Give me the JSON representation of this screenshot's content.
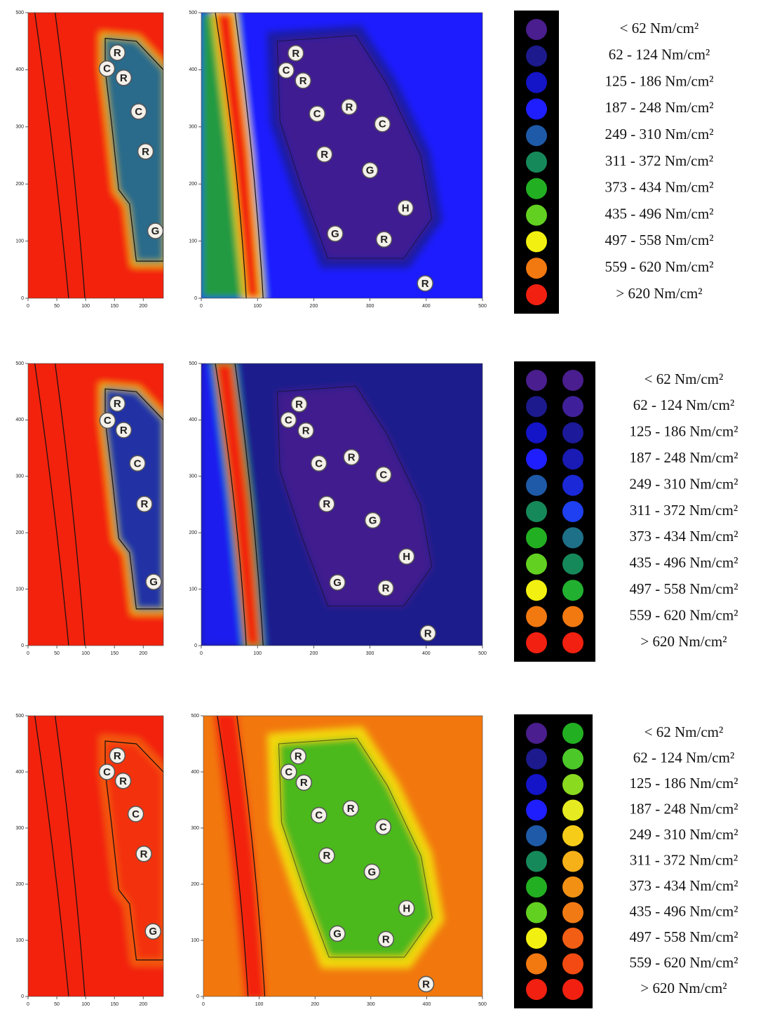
{
  "panels": [
    {
      "small_map": {
        "xlim": [
          0,
          235
        ],
        "ylim": [
          0,
          500
        ],
        "xticks": [
          0,
          50,
          100,
          150,
          200
        ],
        "yticks": [
          0,
          100,
          200,
          300,
          400,
          500
        ],
        "markers": [
          {
            "label": "R",
            "x": 155,
            "y": 430
          },
          {
            "label": "C",
            "x": 137,
            "y": 402
          },
          {
            "label": "R",
            "x": 166,
            "y": 386
          },
          {
            "label": "C",
            "x": 192,
            "y": 327
          },
          {
            "label": "R",
            "x": 204,
            "y": 257
          },
          {
            "label": "G",
            "x": 221,
            "y": 118
          }
        ]
      },
      "large_map": {
        "xlim": [
          0,
          500
        ],
        "ylim": [
          0,
          500
        ],
        "xticks": [
          0,
          100,
          200,
          300,
          400,
          500
        ],
        "yticks": [
          0,
          100,
          200,
          300,
          400,
          500
        ],
        "markers": [
          {
            "label": "R",
            "x": 168,
            "y": 429
          },
          {
            "label": "C",
            "x": 151,
            "y": 399
          },
          {
            "label": "R",
            "x": 181,
            "y": 381
          },
          {
            "label": "C",
            "x": 206,
            "y": 323
          },
          {
            "label": "R",
            "x": 263,
            "y": 335
          },
          {
            "label": "C",
            "x": 322,
            "y": 305
          },
          {
            "label": "R",
            "x": 219,
            "y": 252
          },
          {
            "label": "G",
            "x": 300,
            "y": 224
          },
          {
            "label": "H",
            "x": 363,
            "y": 158
          },
          {
            "label": "G",
            "x": 238,
            "y": 113
          },
          {
            "label": "R",
            "x": 325,
            "y": 103
          },
          {
            "label": "R",
            "x": 398,
            "y": 26
          }
        ]
      },
      "legend": {
        "columns": [
          [
            "#4a1e8e",
            "#1c1a8c",
            "#1414c8",
            "#1e1eff",
            "#1e5aa8",
            "#16895a",
            "#22b022",
            "#62d020",
            "#f2f010",
            "#f27810",
            "#f22010"
          ]
        ],
        "labels": [
          "< 62 Nm/cm²",
          "62 - 124 Nm/cm²",
          "125 - 186 Nm/cm²",
          "187 - 248 Nm/cm²",
          "249 - 310 Nm/cm²",
          "311 - 372 Nm/cm²",
          "373 - 434 Nm/cm²",
          "435 - 496 Nm/cm²",
          "497 - 558 Nm/cm²",
          "559 - 620 Nm/cm²",
          "> 620 Nm/cm²"
        ]
      }
    },
    {
      "small_map": {
        "xlim": [
          0,
          235
        ],
        "ylim": [
          0,
          500
        ],
        "xticks": [
          0,
          50,
          100,
          150,
          200
        ],
        "yticks": [
          0,
          100,
          200,
          300,
          400,
          500
        ],
        "markers": [
          {
            "label": "R",
            "x": 155,
            "y": 429
          },
          {
            "label": "C",
            "x": 138,
            "y": 399
          },
          {
            "label": "R",
            "x": 166,
            "y": 382
          },
          {
            "label": "C",
            "x": 190,
            "y": 323
          },
          {
            "label": "R",
            "x": 202,
            "y": 251
          },
          {
            "label": "G",
            "x": 218,
            "y": 113
          }
        ]
      },
      "large_map": {
        "xlim": [
          0,
          500
        ],
        "ylim": [
          0,
          500
        ],
        "xticks": [
          0,
          100,
          200,
          300,
          400,
          500
        ],
        "yticks": [
          0,
          100,
          200,
          300,
          400,
          500
        ],
        "markers": [
          {
            "label": "R",
            "x": 174,
            "y": 428
          },
          {
            "label": "C",
            "x": 155,
            "y": 400
          },
          {
            "label": "R",
            "x": 186,
            "y": 381
          },
          {
            "label": "C",
            "x": 209,
            "y": 323
          },
          {
            "label": "R",
            "x": 267,
            "y": 334
          },
          {
            "label": "C",
            "x": 324,
            "y": 303
          },
          {
            "label": "R",
            "x": 223,
            "y": 251
          },
          {
            "label": "G",
            "x": 305,
            "y": 222
          },
          {
            "label": "H",
            "x": 365,
            "y": 158
          },
          {
            "label": "G",
            "x": 242,
            "y": 112
          },
          {
            "label": "R",
            "x": 328,
            "y": 102
          },
          {
            "label": "R",
            "x": 403,
            "y": 22
          }
        ]
      },
      "legend": {
        "columns": [
          [
            "#4a1e8e",
            "#1c1a8c",
            "#1414c8",
            "#1e1eff",
            "#1e5aa8",
            "#16895a",
            "#22b022",
            "#62d020",
            "#f2f010",
            "#f27810",
            "#f22010"
          ],
          [
            "#4a1e8e",
            "#40209a",
            "#1c1a9a",
            "#1a1ab4",
            "#1a28d8",
            "#1e40f0",
            "#1e7088",
            "#16895a",
            "#22b030",
            "#f27810",
            "#f22010"
          ]
        ],
        "labels": [
          "< 62 Nm/cm²",
          "62 - 124 Nm/cm²",
          "125 - 186 Nm/cm²",
          "187 - 248 Nm/cm²",
          "249 - 310 Nm/cm²",
          "311 - 372 Nm/cm²",
          "373 - 434 Nm/cm²",
          "435 - 496 Nm/cm²",
          "497 - 558 Nm/cm²",
          "559 - 620 Nm/cm²",
          "> 620 Nm/cm²"
        ]
      }
    },
    {
      "small_map": {
        "xlim": [
          0,
          235
        ],
        "ylim": [
          0,
          500
        ],
        "xticks": [
          0,
          50,
          100,
          150,
          200
        ],
        "yticks": [
          0,
          100,
          200,
          300,
          400,
          500
        ],
        "markers": [
          {
            "label": "R",
            "x": 155,
            "y": 429
          },
          {
            "label": "C",
            "x": 137,
            "y": 400
          },
          {
            "label": "R",
            "x": 165,
            "y": 384
          },
          {
            "label": "C",
            "x": 187,
            "y": 325
          },
          {
            "label": "R",
            "x": 201,
            "y": 254
          },
          {
            "label": "G",
            "x": 217,
            "y": 116
          }
        ]
      },
      "large_map": {
        "xlim": [
          0,
          500
        ],
        "ylim": [
          0,
          500
        ],
        "xticks": [
          0,
          100,
          200,
          300,
          400,
          500
        ],
        "yticks": [
          0,
          100,
          200,
          300,
          400,
          500
        ],
        "markers": [
          {
            "label": "R",
            "x": 170,
            "y": 428
          },
          {
            "label": "C",
            "x": 153,
            "y": 400
          },
          {
            "label": "R",
            "x": 180,
            "y": 381
          },
          {
            "label": "C",
            "x": 207,
            "y": 323
          },
          {
            "label": "R",
            "x": 264,
            "y": 335
          },
          {
            "label": "C",
            "x": 322,
            "y": 302
          },
          {
            "label": "R",
            "x": 221,
            "y": 251
          },
          {
            "label": "G",
            "x": 302,
            "y": 222
          },
          {
            "label": "H",
            "x": 364,
            "y": 157
          },
          {
            "label": "G",
            "x": 240,
            "y": 112
          },
          {
            "label": "R",
            "x": 327,
            "y": 102
          },
          {
            "label": "R",
            "x": 399,
            "y": 22
          }
        ]
      },
      "legend": {
        "columns": [
          [
            "#4a1e8e",
            "#1c1a8c",
            "#1414c8",
            "#1e1eff",
            "#1e5aa8",
            "#16895a",
            "#22b022",
            "#62d020",
            "#f2f010",
            "#f27810",
            "#f22010"
          ],
          [
            "#22b022",
            "#4cc828",
            "#8ada20",
            "#e6ea20",
            "#f6cc18",
            "#f6b018",
            "#f29014",
            "#f27a14",
            "#f25e14",
            "#f24a12",
            "#f22010"
          ]
        ],
        "labels": [
          "< 62 Nm/cm²",
          "62 - 124 Nm/cm²",
          "125 - 186 Nm/cm²",
          "187 - 248 Nm/cm²",
          "249 - 310 Nm/cm²",
          "311 - 372 Nm/cm²",
          "373 - 434 Nm/cm²",
          "435 - 496 Nm/cm²",
          "497 - 558 Nm/cm²",
          "559 - 620 Nm/cm²",
          "> 620 Nm/cm²"
        ]
      }
    }
  ]
}
